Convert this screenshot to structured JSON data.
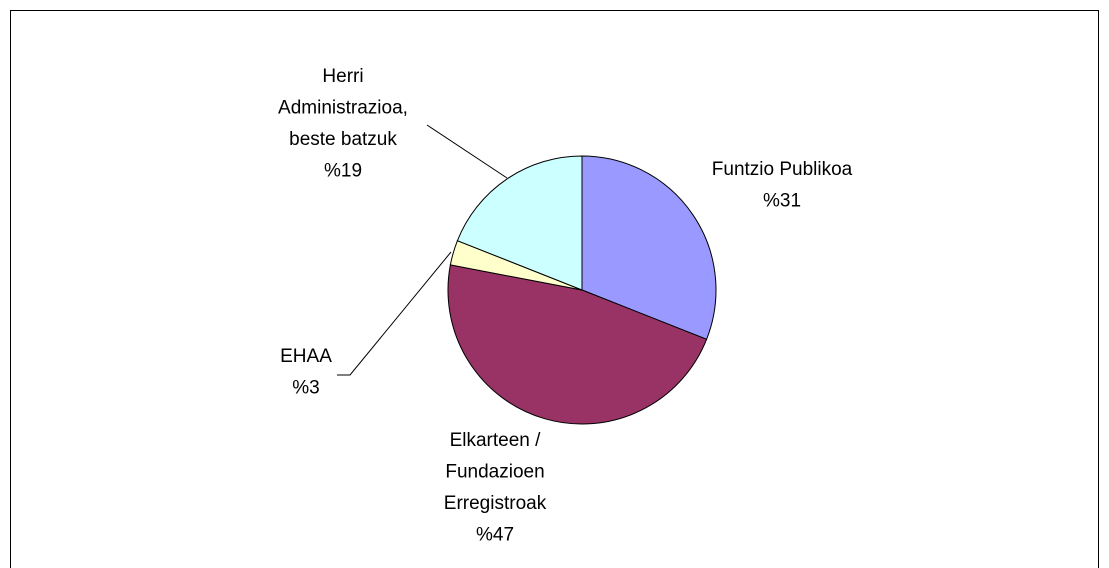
{
  "chart_data": {
    "type": "pie",
    "categories": [
      [
        "Funtzio Publikoa"
      ],
      [
        "Elkarteen /",
        "Fundazioen",
        "Erregistroak"
      ],
      [
        "EHAA"
      ],
      [
        "Herri",
        "Administrazioa,",
        "beste batzuk"
      ]
    ],
    "values": [
      31,
      47,
      3,
      19
    ],
    "value_labels": [
      "%31",
      "%47",
      "%3",
      "%19"
    ],
    "colors": [
      "#9999ff",
      "#993366",
      "#ffffcc",
      "#ccffff"
    ]
  }
}
